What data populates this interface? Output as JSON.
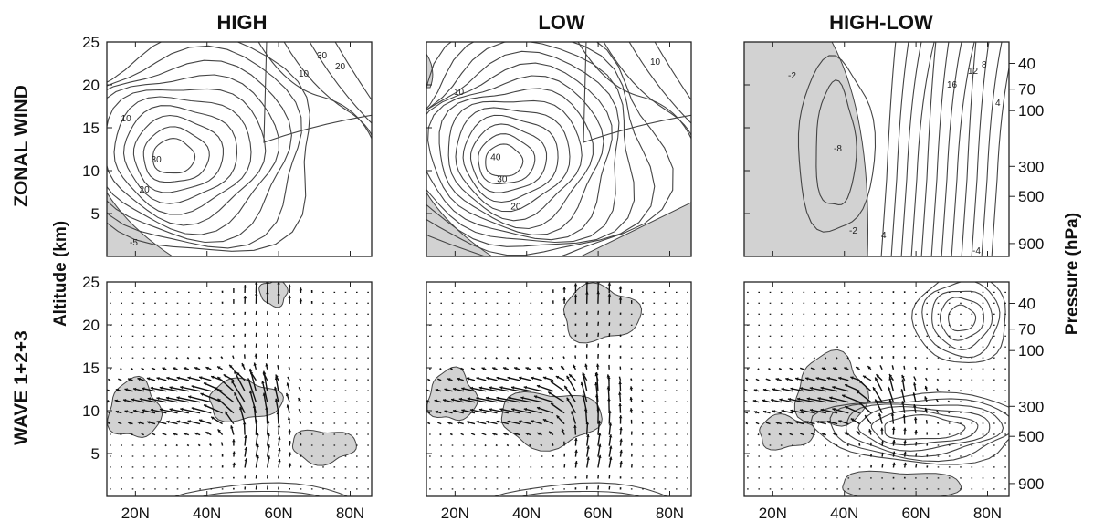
{
  "chart_data": {
    "type": "contour",
    "columns": [
      "HIGH",
      "LOW",
      "HIGH-LOW"
    ],
    "rows": [
      "ZONAL WIND",
      "WAVE 1+2+3"
    ],
    "ylabel_left": "Altitude (km)",
    "ylabel_right": "Pressure (hPa)",
    "x_ticks": [
      "20N",
      "40N",
      "60N",
      "80N"
    ],
    "x_tick_values": [
      20,
      40,
      60,
      80
    ],
    "xlim": [
      12,
      86
    ],
    "y_ticks": [
      "5",
      "10",
      "15",
      "20",
      "25"
    ],
    "y_tick_values": [
      5,
      10,
      15,
      20,
      25
    ],
    "ylim": [
      0,
      25
    ],
    "pressure_ticks": [
      "40",
      "70",
      "100",
      "300",
      "500",
      "900"
    ],
    "pressure_tick_altitudes_km": [
      22.5,
      19.5,
      17.0,
      10.5,
      7.0,
      1.5
    ],
    "contour_labels": {
      "zonal_high": [
        "30",
        "20",
        "10",
        "10",
        "20",
        "30",
        "-5"
      ],
      "zonal_low": [
        "10",
        "40",
        "30",
        "20",
        "10"
      ],
      "zonal_diff": [
        "-2",
        "16",
        "12",
        "8",
        "4",
        "-8",
        "-2",
        "4",
        "-4"
      ]
    },
    "zonal_jet_core": {
      "HIGH": {
        "lat": 30,
        "alt_km": 11.5,
        "max_wind": 30
      },
      "LOW": {
        "lat": 33,
        "alt_km": 11.0,
        "max_wind": 40
      }
    }
  }
}
